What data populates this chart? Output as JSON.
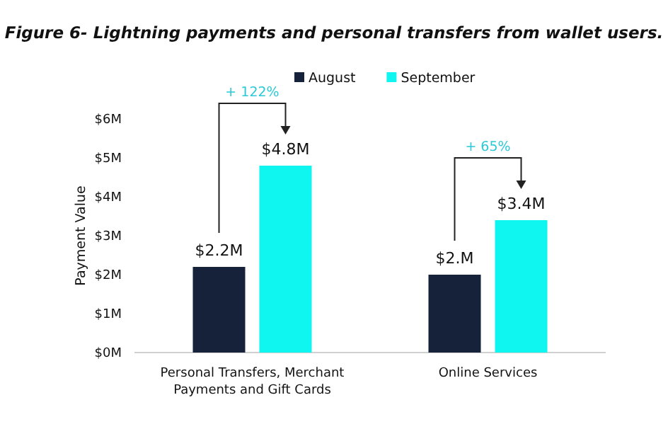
{
  "chart_data": {
    "type": "bar",
    "title": "Figure 6- Lightning payments and personal transfers from wallet users.",
    "ylabel": "Payment Value",
    "categories": [
      "Personal Transfers, Merchant Payments and Gift Cards",
      "Online Services"
    ],
    "series": [
      {
        "name": "August",
        "color": "#16213a",
        "values": [
          2.2,
          2.0
        ],
        "value_labels": [
          "$2.2M",
          "$2.M"
        ]
      },
      {
        "name": "September",
        "color": "#0ff5f0",
        "values": [
          4.8,
          3.4
        ],
        "value_labels": [
          "$4.8M",
          "$3.4M"
        ]
      }
    ],
    "annotations": [
      "+ 122%",
      "+ 65%"
    ],
    "ylim": [
      0,
      6
    ],
    "yticks": [
      {
        "value": 0,
        "label": "$0M"
      },
      {
        "value": 1,
        "label": "$1M"
      },
      {
        "value": 2,
        "label": "$2M"
      },
      {
        "value": 3,
        "label": "$3M"
      },
      {
        "value": 4,
        "label": "$4M"
      },
      {
        "value": 5,
        "label": "$5M"
      },
      {
        "value": 6,
        "label": "$6M"
      }
    ],
    "grid": false,
    "legend": "top"
  }
}
